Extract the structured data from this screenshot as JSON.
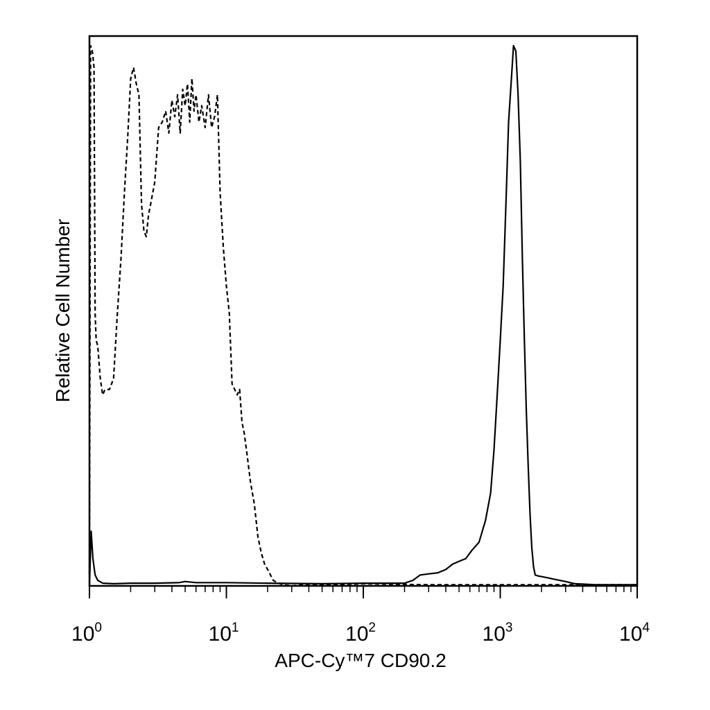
{
  "chart_data": {
    "type": "line",
    "xlabel": "APC-Cy™7 CD90.2",
    "ylabel": "Relative Cell Number",
    "x_scale": "log",
    "xlim": [
      1,
      10000
    ],
    "ylim": [
      0,
      1.0
    ],
    "grid": false,
    "legend": "none",
    "x_ticks": [
      {
        "value": 1,
        "base": "10",
        "exp": "0"
      },
      {
        "value": 10,
        "base": "10",
        "exp": "1"
      },
      {
        "value": 100,
        "base": "10",
        "exp": "2"
      },
      {
        "value": 1000,
        "base": "10",
        "exp": "3"
      },
      {
        "value": 10000,
        "base": "10",
        "exp": "4"
      }
    ],
    "series": [
      {
        "style": "dashed",
        "color": "#000000",
        "x": [
          1.0,
          1.02,
          1.05,
          1.08,
          1.1,
          1.12,
          1.15,
          1.2,
          1.25,
          1.3,
          1.4,
          1.5,
          1.6,
          1.7,
          1.8,
          1.9,
          2.0,
          2.1,
          2.2,
          2.3,
          2.4,
          2.5,
          2.6,
          2.7,
          2.8,
          3.0,
          3.2,
          3.4,
          3.6,
          3.8,
          4.0,
          4.2,
          4.4,
          4.6,
          4.8,
          5.0,
          5.2,
          5.4,
          5.6,
          5.8,
          6.0,
          6.3,
          6.6,
          7.0,
          7.4,
          7.8,
          8.2,
          8.6,
          9.0,
          9.5,
          10.0,
          10.5,
          11.0,
          11.5,
          12.0,
          12.5,
          13.0,
          13.5,
          14.0,
          15.0,
          16.0,
          17.0,
          18.0,
          19.0,
          20.0,
          22.0,
          24.0,
          26.0,
          30.0,
          40.0,
          60.0,
          100.0,
          300.0,
          1000.0,
          10000.0
        ],
        "y": [
          0.02,
          0.99,
          0.98,
          0.95,
          0.5,
          0.45,
          0.44,
          0.38,
          0.35,
          0.36,
          0.36,
          0.38,
          0.5,
          0.6,
          0.72,
          0.82,
          0.93,
          0.95,
          0.92,
          0.9,
          0.7,
          0.65,
          0.64,
          0.68,
          0.7,
          0.74,
          0.84,
          0.85,
          0.87,
          0.83,
          0.89,
          0.86,
          0.9,
          0.83,
          0.91,
          0.88,
          0.92,
          0.85,
          0.93,
          0.87,
          0.9,
          0.85,
          0.88,
          0.84,
          0.9,
          0.84,
          0.86,
          0.9,
          0.72,
          0.62,
          0.55,
          0.5,
          0.37,
          0.36,
          0.35,
          0.36,
          0.3,
          0.28,
          0.25,
          0.19,
          0.15,
          0.09,
          0.06,
          0.04,
          0.03,
          0.01,
          0.005,
          0.002,
          0.0,
          0.003,
          0.002,
          0.004,
          0.002,
          0.002,
          0.002
        ]
      },
      {
        "style": "solid",
        "color": "#000000",
        "x": [
          1.0,
          1.03,
          1.06,
          1.1,
          1.15,
          1.25,
          1.5,
          2.0,
          3.0,
          4.5,
          5.0,
          6.0,
          10.0,
          20.0,
          50.0,
          100.0,
          150.0,
          200.0,
          230.0,
          260.0,
          300.0,
          350.0,
          400.0,
          450.0,
          500.0,
          560.0,
          620.0,
          700.0,
          780.0,
          850.0,
          900.0,
          950.0,
          1000.0,
          1050.0,
          1100.0,
          1150.0,
          1200.0,
          1250.0,
          1300.0,
          1350.0,
          1400.0,
          1450.0,
          1500.0,
          1550.0,
          1600.0,
          1650.0,
          1700.0,
          1750.0,
          1800.0,
          1900.0,
          2000.0,
          2200.0,
          2500.0,
          3000.0,
          3500.0,
          5000.0,
          10000.0
        ],
        "y": [
          0.0,
          0.1,
          0.05,
          0.02,
          0.01,
          0.005,
          0.004,
          0.005,
          0.005,
          0.006,
          0.008,
          0.006,
          0.006,
          0.005,
          0.004,
          0.005,
          0.005,
          0.005,
          0.01,
          0.02,
          0.022,
          0.024,
          0.03,
          0.04,
          0.045,
          0.05,
          0.065,
          0.08,
          0.12,
          0.17,
          0.25,
          0.35,
          0.45,
          0.55,
          0.7,
          0.85,
          0.92,
          0.99,
          0.98,
          0.9,
          0.78,
          0.6,
          0.45,
          0.32,
          0.22,
          0.13,
          0.07,
          0.035,
          0.02,
          0.018,
          0.017,
          0.015,
          0.012,
          0.008,
          0.004,
          0.002,
          0.002
        ]
      }
    ]
  }
}
